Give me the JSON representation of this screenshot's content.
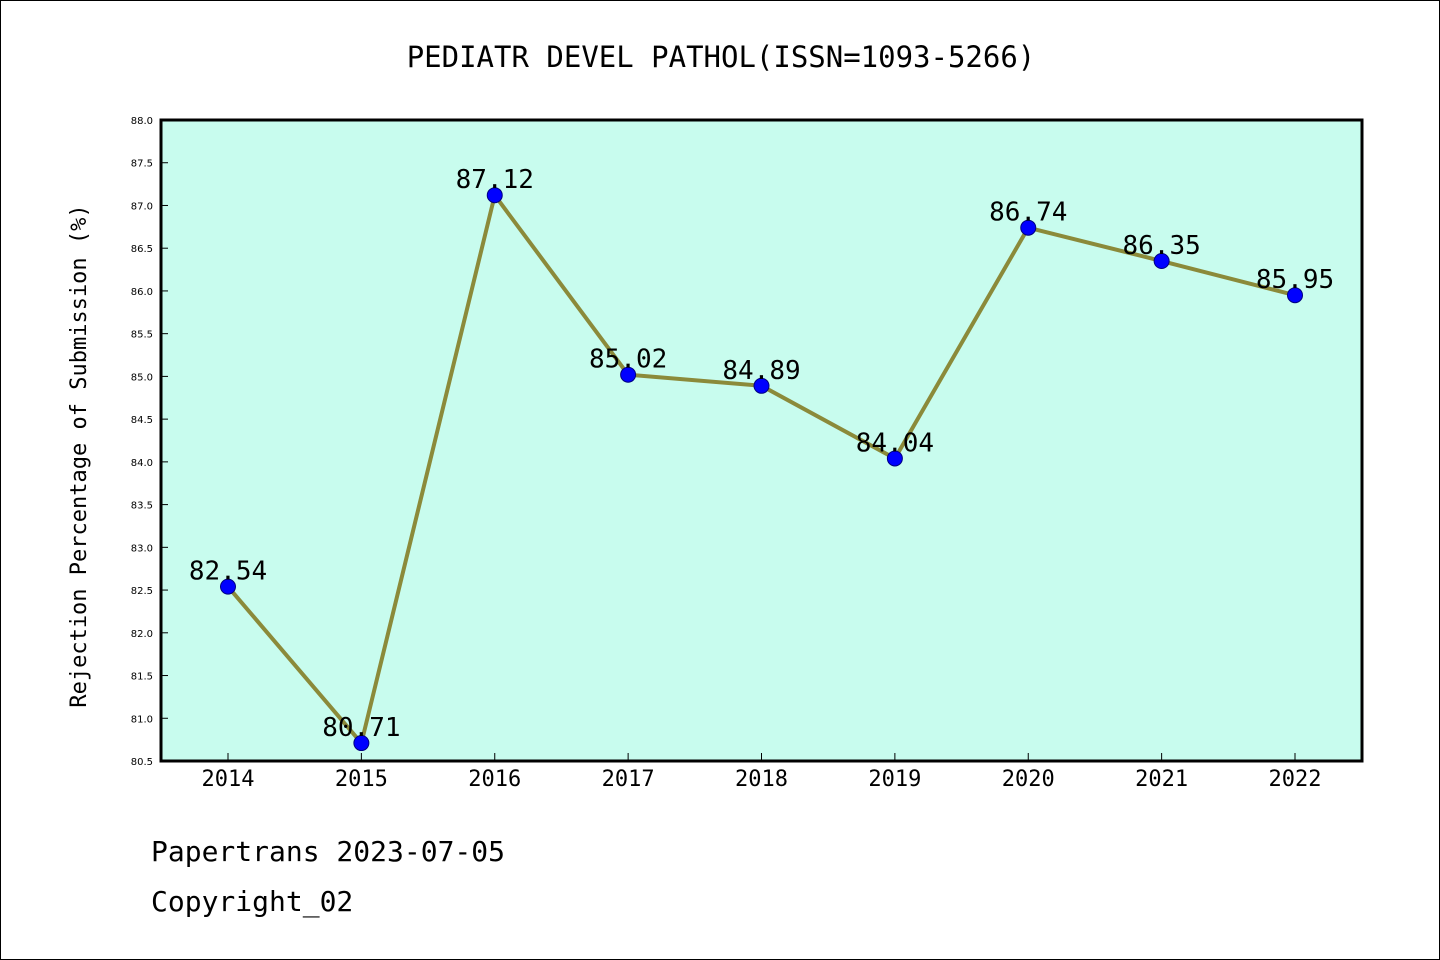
{
  "footer": {
    "line1": "Papertrans 2023-07-05",
    "line2": "Copyright_02"
  },
  "colors": {
    "plot_background": "#c8fcee",
    "line": "#8b8a3a",
    "marker": "#0000ff",
    "axes": "#000000"
  },
  "chart_data": {
    "type": "line",
    "title": "PEDIATR DEVEL PATHOL(ISSN=1093-5266)",
    "xlabel": "",
    "ylabel": "Rejection Percentage of Submission (%)",
    "categories": [
      "2014",
      "2015",
      "2016",
      "2017",
      "2018",
      "2019",
      "2020",
      "2021",
      "2022"
    ],
    "series": [
      {
        "values": [
          82.54,
          80.71,
          87.12,
          85.02,
          84.89,
          84.04,
          86.74,
          86.35,
          85.95
        ],
        "labels": [
          "82.54",
          "80.71",
          "87.12",
          "85.02",
          "84.89",
          "84.04",
          "86.74",
          "86.35",
          "85.95"
        ]
      }
    ],
    "ylim": [
      80.5,
      88.0
    ],
    "yticks": [
      "80.5",
      "81.0",
      "81.5",
      "82.0",
      "82.5",
      "83.0",
      "83.5",
      "84.0",
      "84.5",
      "85.0",
      "85.5",
      "86.0",
      "86.5",
      "87.0",
      "87.5",
      "88.0"
    ],
    "grid": false,
    "legend": "none",
    "markers": true
  }
}
